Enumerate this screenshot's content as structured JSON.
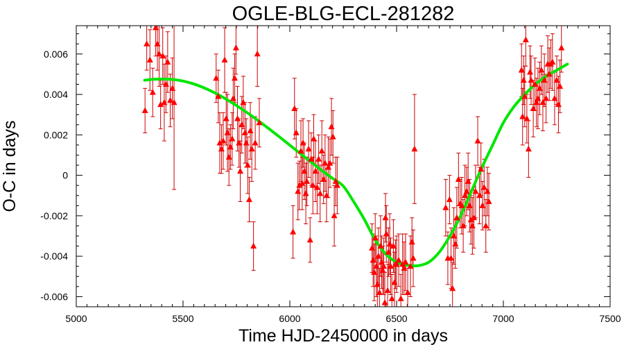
{
  "chart_data": {
    "type": "scatter",
    "title": "OGLE-BLG-ECL-281282",
    "xlabel": "Time HJD-2450000 in days",
    "ylabel": "O-C in days",
    "xlim": [
      5000,
      7500
    ],
    "ylim": [
      -0.0065,
      0.0074
    ],
    "xticks": [
      5000,
      5500,
      6000,
      6500,
      7000,
      7500
    ],
    "yticks": [
      -0.006,
      -0.004,
      -0.002,
      0,
      0.002,
      0.004,
      0.006
    ],
    "ytick_labels": [
      "-0.006",
      "-0.004",
      "-0.002",
      "0",
      "0.002",
      "0.004",
      "0.006"
    ],
    "grid": false,
    "colors": {
      "points": "#ff0000",
      "errorbars": "#cc0000",
      "fit": "#00e600",
      "frame": "#000000"
    },
    "series": [
      {
        "kind": "points-with-errorbars",
        "marker": "triangle",
        "points": [
          [
            5322,
            0.0032,
            0.0011
          ],
          [
            5330,
            0.0065,
            0.0013
          ],
          [
            5345,
            0.0057,
            0.0015
          ],
          [
            5358,
            0.0041,
            0.0012
          ],
          [
            5372,
            0.0073,
            0.0014
          ],
          [
            5380,
            0.0065,
            0.0013
          ],
          [
            5388,
            0.006,
            0.0016
          ],
          [
            5395,
            0.0035,
            0.0012
          ],
          [
            5405,
            0.0059,
            0.0014
          ],
          [
            5412,
            0.0036,
            0.0019
          ],
          [
            5420,
            0.0045,
            0.0014
          ],
          [
            5428,
            0.0056,
            0.0015
          ],
          [
            5440,
            0.0037,
            0.0013
          ],
          [
            5450,
            0.0043,
            0.0015
          ],
          [
            5458,
            0.0036,
            0.0043
          ],
          [
            5655,
            0.0048,
            0.0012
          ],
          [
            5665,
            0.0039,
            0.0013
          ],
          [
            5672,
            0.0016,
            0.0015
          ],
          [
            5680,
            0.0013,
            0.0012
          ],
          [
            5688,
            0.0017,
            0.0014
          ],
          [
            5695,
            0.0057,
            0.0016
          ],
          [
            5702,
            0.0028,
            0.0013
          ],
          [
            5708,
            0.0021,
            0.0019
          ],
          [
            5715,
            0.0009,
            0.0014
          ],
          [
            5722,
            0.0014,
            0.0011
          ],
          [
            5730,
            0.0018,
            0.0013
          ],
          [
            5735,
            0.0038,
            0.0015
          ],
          [
            5742,
            0.0048,
            0.0012
          ],
          [
            5748,
            0.0063,
            0.0013
          ],
          [
            5755,
            0.0028,
            0.0016
          ],
          [
            5762,
            0.0016,
            0.0012
          ],
          [
            5768,
            0.0002,
            0.0015
          ],
          [
            5775,
            0.0025,
            0.0014
          ],
          [
            5782,
            0.0036,
            0.0013
          ],
          [
            5790,
            0.0021,
            0.0015
          ],
          [
            5796,
            0.0016,
            0.0012
          ],
          [
            5803,
            0.0005,
            0.0014
          ],
          [
            5810,
            -0.0012,
            0.0011
          ],
          [
            5815,
            0.0022,
            0.0014
          ],
          [
            5822,
            0.0013,
            0.0016
          ],
          [
            5830,
            -0.0035,
            0.0012
          ],
          [
            5838,
            0.0016,
            0.0013
          ],
          [
            5848,
            0.006,
            0.0016
          ],
          [
            5857,
            0.0026,
            0.0012
          ],
          [
            6015,
            -0.0028,
            0.0013
          ],
          [
            6022,
            0.0033,
            0.0015
          ],
          [
            6030,
            0.0021,
            0.0012
          ],
          [
            6038,
            -0.0008,
            0.0014
          ],
          [
            6045,
            -0.0005,
            0.0012
          ],
          [
            6052,
            0.0012,
            0.0015
          ],
          [
            6058,
            -0.0004,
            0.0013
          ],
          [
            6062,
            0.0016,
            0.0012
          ],
          [
            6068,
            0.0002,
            0.0014
          ],
          [
            6075,
            -0.0009,
            0.0015
          ],
          [
            6080,
            -0.0003,
            0.0012
          ],
          [
            6088,
            0.0013,
            0.0014
          ],
          [
            6095,
            -0.0032,
            0.0011
          ],
          [
            6100,
            0.0008,
            0.0013
          ],
          [
            6108,
            -0.0005,
            0.0014
          ],
          [
            6112,
            0.0018,
            0.0012
          ],
          [
            6120,
            0.0002,
            0.0015
          ],
          [
            6128,
            -0.0006,
            0.0013
          ],
          [
            6135,
            0.0008,
            0.0012
          ],
          [
            6142,
            -0.0009,
            0.0014
          ],
          [
            6150,
            0.0012,
            0.0015
          ],
          [
            6158,
            -0.0002,
            0.0012
          ],
          [
            6165,
            0.0006,
            0.0014
          ],
          [
            6172,
            -0.001,
            0.0013
          ],
          [
            6180,
            0.0004,
            0.0015
          ],
          [
            6188,
            0.0006,
            0.0012
          ],
          [
            6195,
            0.0024,
            0.0014
          ],
          [
            6202,
            0.0019,
            0.0013
          ],
          [
            6208,
            -0.002,
            0.0015
          ],
          [
            6215,
            -0.0003,
            0.0012
          ],
          [
            6222,
            -0.0005,
            0.0014
          ],
          [
            6385,
            -0.0036,
            0.0012
          ],
          [
            6390,
            -0.0042,
            0.0013
          ],
          [
            6395,
            -0.0048,
            0.0014
          ],
          [
            6400,
            -0.0031,
            0.0012
          ],
          [
            6405,
            -0.0045,
            0.0015
          ],
          [
            6410,
            -0.0054,
            0.0013
          ],
          [
            6415,
            -0.004,
            0.0014
          ],
          [
            6420,
            -0.0058,
            0.0012
          ],
          [
            6425,
            -0.0035,
            0.0015
          ],
          [
            6430,
            -0.0043,
            0.0013
          ],
          [
            6435,
            -0.0047,
            0.0012
          ],
          [
            6440,
            -0.0045,
            0.0014
          ],
          [
            6445,
            -0.0063,
            0.0015
          ],
          [
            6448,
            -0.0021,
            0.0012
          ],
          [
            6452,
            -0.0029,
            0.0014
          ],
          [
            6458,
            -0.0057,
            0.0013
          ],
          [
            6462,
            -0.0038,
            0.0012
          ],
          [
            6468,
            -0.0034,
            0.0015
          ],
          [
            6472,
            -0.0045,
            0.0014
          ],
          [
            6478,
            -0.0061,
            0.0012
          ],
          [
            6485,
            -0.0035,
            0.0013
          ],
          [
            6490,
            -0.0053,
            0.0015
          ],
          [
            6495,
            -0.0044,
            0.0012
          ],
          [
            6500,
            -0.0044,
            0.0014
          ],
          [
            6510,
            -0.0042,
            0.0013
          ],
          [
            6520,
            -0.0061,
            0.0012
          ],
          [
            6528,
            -0.0044,
            0.0015
          ],
          [
            6535,
            -0.0046,
            0.0013
          ],
          [
            6542,
            -0.0043,
            0.0014
          ],
          [
            6552,
            -0.0058,
            0.0012
          ],
          [
            6565,
            -0.0045,
            0.0015
          ],
          [
            6572,
            -0.0033,
            0.0012
          ],
          [
            6578,
            -0.0041,
            0.0014
          ],
          [
            6584,
            0.0013,
            0.0027
          ],
          [
            6730,
            -0.0016,
            0.0014
          ],
          [
            6740,
            -0.0041,
            0.0013
          ],
          [
            6748,
            -0.0012,
            0.0012
          ],
          [
            6755,
            -0.0041,
            0.0015
          ],
          [
            6762,
            -0.0056,
            0.0013
          ],
          [
            6768,
            -0.003,
            0.0014
          ],
          [
            6775,
            -0.0034,
            0.0012
          ],
          [
            6782,
            -0.0021,
            0.0015
          ],
          [
            6790,
            -0.0002,
            0.0013
          ],
          [
            6798,
            -0.0014,
            0.0012
          ],
          [
            6805,
            -0.0015,
            0.0014
          ],
          [
            6812,
            -0.0025,
            0.0013
          ],
          [
            6820,
            -0.001,
            0.0015
          ],
          [
            6828,
            -0.0008,
            0.0012
          ],
          [
            6835,
            -0.0003,
            0.0014
          ],
          [
            6842,
            -0.0015,
            0.0013
          ],
          [
            6848,
            -0.0022,
            0.0012
          ],
          [
            6855,
            -0.0025,
            0.0014
          ],
          [
            6862,
            -0.0021,
            0.0015
          ],
          [
            6870,
            -0.0008,
            0.0013
          ],
          [
            6880,
            0.0017,
            0.0012
          ],
          [
            6888,
            -0.001,
            0.0014
          ],
          [
            6895,
            0.0003,
            0.0013
          ],
          [
            6902,
            -0.0015,
            0.0012
          ],
          [
            6910,
            -0.0006,
            0.0014
          ],
          [
            6918,
            -0.0025,
            0.0013
          ],
          [
            6925,
            -0.0008,
            0.0012
          ],
          [
            6932,
            -0.0013,
            0.0014
          ],
          [
            7085,
            0.0052,
            0.0013
          ],
          [
            7090,
            0.0029,
            0.0014
          ],
          [
            7095,
            0.0047,
            0.0012
          ],
          [
            7100,
            0.0039,
            0.0015
          ],
          [
            7105,
            0.0067,
            0.0013
          ],
          [
            7110,
            0.0028,
            0.0012
          ],
          [
            7118,
            0.0013,
            0.0014
          ],
          [
            7125,
            0.0051,
            0.0013
          ],
          [
            7130,
            0.0047,
            0.0012
          ],
          [
            7140,
            0.0033,
            0.0014
          ],
          [
            7148,
            0.0045,
            0.0013
          ],
          [
            7155,
            0.0036,
            0.0012
          ],
          [
            7162,
            0.0038,
            0.0015
          ],
          [
            7170,
            0.0043,
            0.0013
          ],
          [
            7178,
            0.0052,
            0.0012
          ],
          [
            7185,
            0.0036,
            0.0014
          ],
          [
            7192,
            0.0047,
            0.0013
          ],
          [
            7200,
            0.0038,
            0.0012
          ],
          [
            7208,
            0.0055,
            0.0014
          ],
          [
            7215,
            0.005,
            0.0013
          ],
          [
            7222,
            0.0055,
            0.0012
          ],
          [
            7230,
            0.0056,
            0.0014
          ],
          [
            7240,
            0.0038,
            0.0013
          ],
          [
            7250,
            0.0047,
            0.0012
          ],
          [
            7258,
            0.0035,
            0.0014
          ],
          [
            7265,
            0.0044,
            0.0013
          ],
          [
            7272,
            0.0063,
            0.0012
          ]
        ]
      },
      {
        "kind": "fit-curve",
        "x": [
          5320,
          5350,
          5400,
          5450,
          5500,
          5550,
          5600,
          5650,
          5700,
          5750,
          5800,
          5850,
          5900,
          5950,
          6000,
          6050,
          6100,
          6150,
          6200,
          6250,
          6300,
          6350,
          6400,
          6450,
          6500,
          6550,
          6600,
          6650,
          6700,
          6750,
          6800,
          6850,
          6900,
          6950,
          7000,
          7050,
          7100,
          7150,
          7200,
          7250,
          7300
        ],
        "y": [
          0.0047,
          0.00474,
          0.00476,
          0.00474,
          0.00466,
          0.00452,
          0.00432,
          0.00407,
          0.00378,
          0.00345,
          0.0031,
          0.00272,
          0.00232,
          0.00191,
          0.00149,
          0.00107,
          0.00065,
          0.00024,
          -0.00015,
          -0.00053,
          -0.00132,
          -0.0022,
          -0.0032,
          -0.0039,
          -0.0043,
          -0.00445,
          -0.00447,
          -0.0043,
          -0.0038,
          -0.003,
          -0.002,
          -0.0008,
          0.0004,
          0.0015,
          0.0026,
          0.0034,
          0.004,
          0.0045,
          0.0049,
          0.0052,
          0.0055
        ]
      }
    ]
  }
}
